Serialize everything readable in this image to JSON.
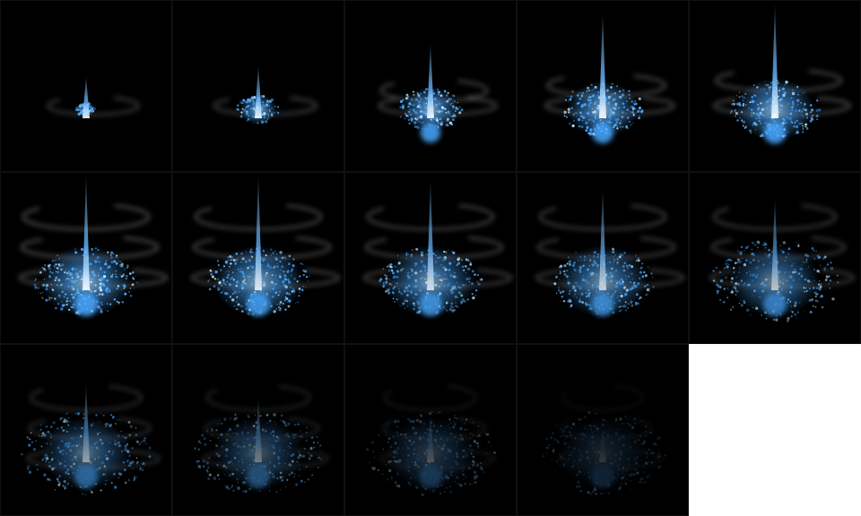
{
  "sprite_sheet": {
    "background_color": "#ffffff",
    "frame_background": "#000000",
    "particle_color": "#4aa8ff",
    "core_color": "#bfe8ff",
    "swirl_color": "#c8c8d0",
    "columns": 5,
    "rows": 3,
    "frames": [
      {
        "index": 1,
        "burst": 0.05,
        "beam": 0.18,
        "swirl": 0.25,
        "opacity": 1.0
      },
      {
        "index": 2,
        "burst": 0.3,
        "beam": 0.3,
        "swirl": 0.4,
        "opacity": 1.0
      },
      {
        "index": 3,
        "burst": 0.55,
        "beam": 0.55,
        "swirl": 0.6,
        "opacity": 1.0
      },
      {
        "index": 4,
        "burst": 0.75,
        "beam": 0.9,
        "swirl": 0.75,
        "opacity": 1.0
      },
      {
        "index": 5,
        "burst": 0.85,
        "beam": 1.0,
        "swirl": 0.85,
        "opacity": 1.0
      },
      {
        "index": 6,
        "burst": 1.0,
        "beam": 1.0,
        "swirl": 1.0,
        "opacity": 1.0
      },
      {
        "index": 7,
        "burst": 1.0,
        "beam": 1.0,
        "swirl": 1.0,
        "opacity": 0.95
      },
      {
        "index": 8,
        "burst": 1.0,
        "beam": 0.95,
        "swirl": 1.0,
        "opacity": 0.9
      },
      {
        "index": 9,
        "burst": 1.0,
        "beam": 0.85,
        "swirl": 1.0,
        "opacity": 0.85
      },
      {
        "index": 10,
        "burst": 1.0,
        "beam": 0.75,
        "swirl": 0.95,
        "opacity": 0.8
      },
      {
        "index": 11,
        "burst": 1.0,
        "beam": 0.6,
        "swirl": 0.8,
        "opacity": 0.65
      },
      {
        "index": 12,
        "burst": 1.0,
        "beam": 0.45,
        "swirl": 0.7,
        "opacity": 0.5
      },
      {
        "index": 13,
        "burst": 1.0,
        "beam": 0.25,
        "swirl": 0.55,
        "opacity": 0.35
      },
      {
        "index": 14,
        "burst": 1.0,
        "beam": 0.1,
        "swirl": 0.4,
        "opacity": 0.22
      }
    ]
  }
}
